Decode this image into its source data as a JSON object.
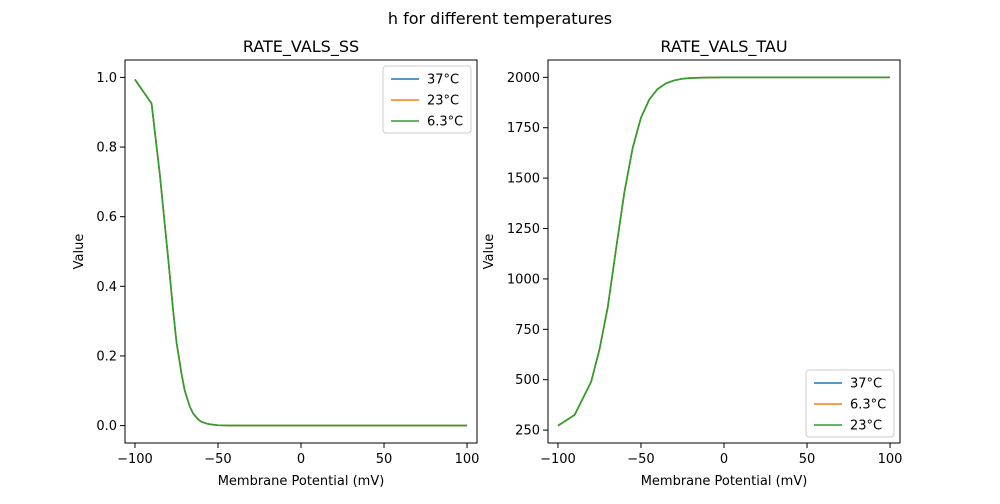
{
  "figure": {
    "suptitle": "h for different temperatures"
  },
  "chart_data": [
    {
      "type": "line",
      "title": "RATE_VALS_SS",
      "xlabel": "Membrane Potential (mV)",
      "ylabel": "Value",
      "xlim": [
        -106,
        106
      ],
      "ylim": [
        -0.05,
        1.05
      ],
      "xticks": [
        -100,
        -50,
        0,
        50,
        100
      ],
      "yticks": [
        0.0,
        0.2,
        0.4,
        0.6,
        0.8,
        1.0
      ],
      "yticklabels": [
        "0.0",
        "0.2",
        "0.4",
        "0.6",
        "0.8",
        "1.0"
      ],
      "legend": "top-right",
      "grid": false,
      "x": [
        -100,
        -90,
        -85,
        -80,
        -77,
        -75,
        -72,
        -70,
        -67,
        -65,
        -62,
        -60,
        -57,
        -55,
        -52,
        -50,
        -45,
        -40,
        -30,
        -20,
        0,
        50,
        100
      ],
      "series": [
        {
          "name": "37°C",
          "color": "#1f77b4",
          "values": [
            0.994,
            0.925,
            0.72,
            0.48,
            0.33,
            0.24,
            0.15,
            0.1,
            0.055,
            0.035,
            0.018,
            0.011,
            0.006,
            0.004,
            0.002,
            0.001,
            0.0004,
            0.0001,
            0,
            0,
            0,
            0,
            0
          ]
        },
        {
          "name": "23°C",
          "color": "#ff7f0e",
          "values": [
            0.994,
            0.925,
            0.72,
            0.48,
            0.33,
            0.24,
            0.15,
            0.1,
            0.055,
            0.035,
            0.018,
            0.011,
            0.006,
            0.004,
            0.002,
            0.001,
            0.0004,
            0.0001,
            0,
            0,
            0,
            0,
            0
          ]
        },
        {
          "name": "6.3°C",
          "color": "#2ca02c",
          "values": [
            0.994,
            0.925,
            0.72,
            0.48,
            0.33,
            0.24,
            0.15,
            0.1,
            0.055,
            0.035,
            0.018,
            0.011,
            0.006,
            0.004,
            0.002,
            0.001,
            0.0004,
            0.0001,
            0,
            0,
            0,
            0,
            0
          ]
        }
      ]
    },
    {
      "type": "line",
      "title": "RATE_VALS_TAU",
      "xlabel": "Membrane Potential (mV)",
      "ylabel": "Value",
      "xlim": [
        -106,
        106
      ],
      "ylim": [
        186,
        2086
      ],
      "xticks": [
        -100,
        -50,
        0,
        50,
        100
      ],
      "yticks": [
        250,
        500,
        750,
        1000,
        1250,
        1500,
        1750,
        2000
      ],
      "yticklabels": [
        "250",
        "500",
        "750",
        "1000",
        "1250",
        "1500",
        "1750",
        "2000"
      ],
      "legend": "bottom-right",
      "grid": false,
      "x": [
        -100,
        -90,
        -80,
        -75,
        -70,
        -65,
        -60,
        -55,
        -50,
        -45,
        -40,
        -35,
        -30,
        -25,
        -20,
        -10,
        0,
        50,
        100
      ],
      "series": [
        {
          "name": "37°C",
          "color": "#1f77b4",
          "values": [
            272,
            325,
            490,
            650,
            860,
            1150,
            1430,
            1650,
            1800,
            1890,
            1942,
            1970,
            1985,
            1993,
            1997,
            1999,
            2000,
            2000,
            2000
          ]
        },
        {
          "name": "6.3°C",
          "color": "#ff7f0e",
          "values": [
            272,
            325,
            490,
            650,
            860,
            1150,
            1430,
            1650,
            1800,
            1890,
            1942,
            1970,
            1985,
            1993,
            1997,
            1999,
            2000,
            2000,
            2000
          ]
        },
        {
          "name": "23°C",
          "color": "#2ca02c",
          "values": [
            272,
            325,
            490,
            650,
            860,
            1150,
            1430,
            1650,
            1800,
            1890,
            1942,
            1970,
            1985,
            1993,
            1997,
            1999,
            2000,
            2000,
            2000
          ]
        }
      ]
    }
  ]
}
